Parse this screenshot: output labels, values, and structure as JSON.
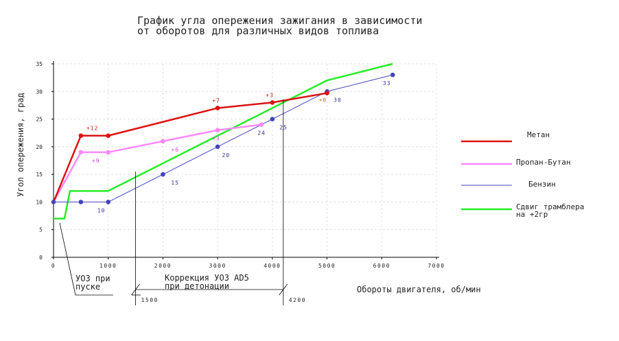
{
  "chart_data": {
    "type": "line",
    "title_lines": [
      "График угла опережения зажигания в зависимости",
      "от оборотов для различных видов топлива"
    ],
    "xlabel": "Обороты двигателя, об/мин",
    "ylabel": "Угол опережения, град",
    "xlim": [
      0,
      7000
    ],
    "ylim": [
      0,
      35
    ],
    "xticks": [
      0,
      1000,
      2000,
      3000,
      4000,
      5000,
      6000,
      7000
    ],
    "yticks": [
      0,
      5,
      10,
      15,
      20,
      25,
      30,
      35
    ],
    "xtick_labels": [
      "0",
      "1000",
      "2000",
      "3000",
      "4000",
      "5000",
      "6000",
      "7000"
    ],
    "ytick_labels": [
      "0",
      "5",
      "10",
      "15",
      "20",
      "25",
      "30",
      "35"
    ],
    "grid": true,
    "legend_position": "right",
    "series": [
      {
        "name": "Метан",
        "color": "#dd1111",
        "markers": true,
        "points": [
          [
            0,
            10
          ],
          [
            500,
            22
          ],
          [
            1000,
            22
          ],
          [
            3000,
            27
          ],
          [
            4000,
            28
          ],
          [
            5000,
            29.7
          ]
        ],
        "labels": [
          {
            "x": 600,
            "y": 22,
            "text": "+12"
          },
          {
            "x": 2900,
            "y": 27,
            "text": "+7"
          },
          {
            "x": 3880,
            "y": 28,
            "text": "+3"
          }
        ]
      },
      {
        "name": "Пропан-Бутан",
        "color": "#ff88ff",
        "markers": true,
        "points": [
          [
            0,
            10
          ],
          [
            500,
            19
          ],
          [
            1000,
            19
          ],
          [
            2000,
            21
          ],
          [
            3000,
            23
          ],
          [
            3800,
            24
          ]
        ],
        "labels": [
          {
            "x": 700,
            "y": 19,
            "text": "+9"
          },
          {
            "x": 2150,
            "y": 21,
            "text": "+6"
          },
          {
            "x": 2900,
            "y": 23,
            "text": "+3"
          },
          {
            "x": 4850,
            "y": 30,
            "text": "+0"
          }
        ]
      },
      {
        "name": "Бензин",
        "color": "#4444bb",
        "markers": true,
        "points": [
          [
            0,
            10
          ],
          [
            500,
            10
          ],
          [
            1000,
            10
          ],
          [
            2000,
            15
          ],
          [
            3000,
            20
          ],
          [
            4000,
            25
          ],
          [
            5000,
            30
          ],
          [
            6200,
            33
          ]
        ],
        "labels": [
          {
            "x": 800,
            "y": 10,
            "text": "10"
          },
          {
            "x": 2150,
            "y": 15,
            "text": "15"
          },
          {
            "x": 3080,
            "y": 20,
            "text": "20"
          },
          {
            "x": 3730,
            "y": 24,
            "text": "24"
          },
          {
            "x": 4130,
            "y": 25,
            "text": "25"
          },
          {
            "x": 5120,
            "y": 30,
            "text": "30"
          },
          {
            "x": 6020,
            "y": 33,
            "text": "33"
          }
        ]
      },
      {
        "name": "Сдвиг трамблера на +2гр",
        "color": "#22ee22",
        "markers": false,
        "points": [
          [
            0,
            7
          ],
          [
            200,
            7
          ],
          [
            300,
            12
          ],
          [
            1000,
            12
          ],
          [
            5000,
            32
          ],
          [
            6200,
            35
          ]
        ],
        "labels": []
      }
    ],
    "annotations": [
      {
        "text_lines": [
          "УОЗ при",
          "пуске"
        ]
      },
      {
        "text_lines": [
          "Коррекция УОЗ AD5",
          "при детонации"
        ],
        "from": 1500,
        "to": 4200
      },
      {
        "text": "1500",
        "x": 1500
      },
      {
        "text": "4200",
        "x": 4200
      }
    ]
  },
  "legend": [
    {
      "text_lines": [
        "Метан"
      ],
      "color": "#dd1111"
    },
    {
      "text_lines": [
        "Пропан-Бутан"
      ],
      "color": "#ff88ff"
    },
    {
      "text_lines": [
        "Бензин"
      ],
      "color": "#4444bb"
    },
    {
      "text_lines": [
        "Сдвиг трамблера",
        "на +2гр"
      ],
      "color": "#22ee22"
    }
  ]
}
